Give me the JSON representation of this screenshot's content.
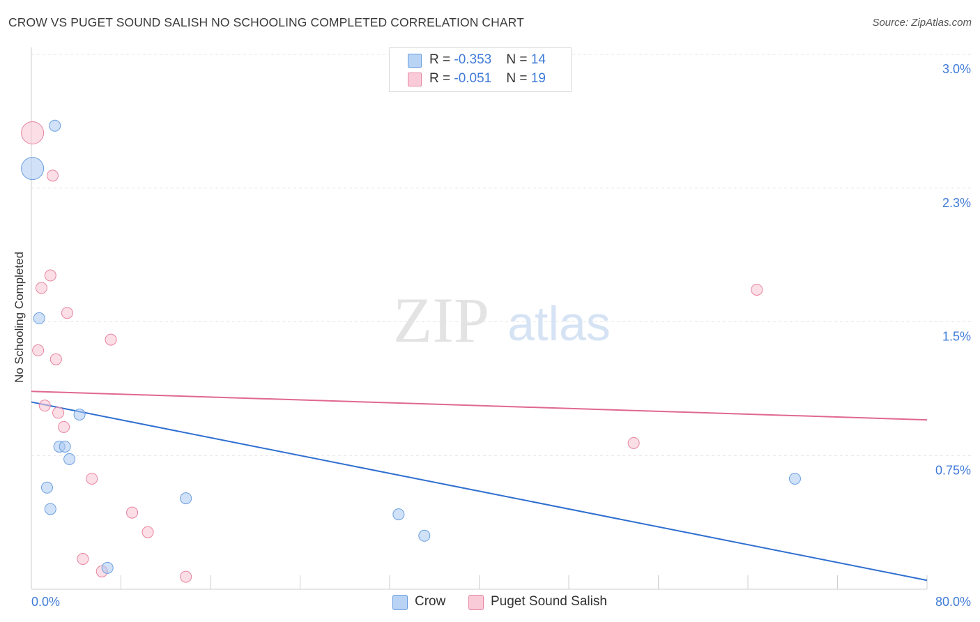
{
  "title": "CROW VS PUGET SOUND SALISH NO SCHOOLING COMPLETED CORRELATION CHART",
  "source": "Source: ZipAtlas.com",
  "watermark": {
    "zip": "ZIP",
    "atlas": "atlas"
  },
  "legend": {
    "rows": [
      {
        "r_label": "R = ",
        "r_value": "-0.353",
        "n_label": "N = ",
        "n_value": "14"
      },
      {
        "r_label": "R = ",
        "r_value": "-0.051",
        "n_label": "N = ",
        "n_value": "19"
      }
    ]
  },
  "bottom_legend": [
    {
      "label": "Crow"
    },
    {
      "label": "Puget Sound Salish"
    }
  ],
  "chart_data": {
    "type": "scatter",
    "title": "CROW VS PUGET SOUND SALISH NO SCHOOLING COMPLETED CORRELATION CHART",
    "xlabel": "",
    "ylabel": "No Schooling Completed",
    "xlim": [
      0,
      80
    ],
    "ylim": [
      0,
      3.0
    ],
    "x_tick_labels": [
      "0.0%",
      "80.0%"
    ],
    "y_ticks": [
      0.75,
      1.5,
      2.25,
      3.0
    ],
    "y_tick_labels": [
      "0.75%",
      "1.5%",
      "2.3%",
      "3.0%"
    ],
    "grid": true,
    "series": [
      {
        "name": "Crow",
        "color": "#a9c9f2",
        "stroke": "#6a9fe0",
        "trend_color": "#2f6fd1",
        "r": -0.353,
        "n": 14,
        "trend": {
          "x0": 0,
          "y0": 1.05,
          "x1": 80,
          "y1": 0.05
        },
        "points": [
          {
            "x": 0.1,
            "y": 2.36,
            "size": "large"
          },
          {
            "x": 2.1,
            "y": 2.6
          },
          {
            "x": 0.7,
            "y": 1.52
          },
          {
            "x": 4.3,
            "y": 0.98
          },
          {
            "x": 2.5,
            "y": 0.8
          },
          {
            "x": 3.0,
            "y": 0.8
          },
          {
            "x": 3.4,
            "y": 0.73
          },
          {
            "x": 1.4,
            "y": 0.57
          },
          {
            "x": 1.7,
            "y": 0.45
          },
          {
            "x": 13.8,
            "y": 0.51
          },
          {
            "x": 6.8,
            "y": 0.12
          },
          {
            "x": 32.8,
            "y": 0.42
          },
          {
            "x": 35.1,
            "y": 0.3
          },
          {
            "x": 68.2,
            "y": 0.62
          }
        ]
      },
      {
        "name": "Puget Sound Salish",
        "color": "#f7c2d1",
        "stroke": "#e8849f",
        "trend_color": "#e06890",
        "r": -0.051,
        "n": 19,
        "trend": {
          "x0": 0,
          "y0": 1.11,
          "x1": 80,
          "y1": 0.95
        },
        "points": [
          {
            "x": 0.1,
            "y": 2.56,
            "size": "large"
          },
          {
            "x": 1.9,
            "y": 2.32
          },
          {
            "x": 1.7,
            "y": 1.76
          },
          {
            "x": 0.9,
            "y": 1.69
          },
          {
            "x": 3.2,
            "y": 1.55
          },
          {
            "x": 7.1,
            "y": 1.4
          },
          {
            "x": 0.6,
            "y": 1.34
          },
          {
            "x": 2.2,
            "y": 1.29
          },
          {
            "x": 1.2,
            "y": 1.03
          },
          {
            "x": 2.4,
            "y": 0.99
          },
          {
            "x": 2.9,
            "y": 0.91
          },
          {
            "x": 5.4,
            "y": 0.62
          },
          {
            "x": 9.0,
            "y": 0.43
          },
          {
            "x": 10.4,
            "y": 0.32
          },
          {
            "x": 4.6,
            "y": 0.17
          },
          {
            "x": 6.3,
            "y": 0.1
          },
          {
            "x": 13.8,
            "y": 0.07
          },
          {
            "x": 53.8,
            "y": 0.82
          },
          {
            "x": 64.8,
            "y": 1.68
          }
        ]
      }
    ]
  }
}
